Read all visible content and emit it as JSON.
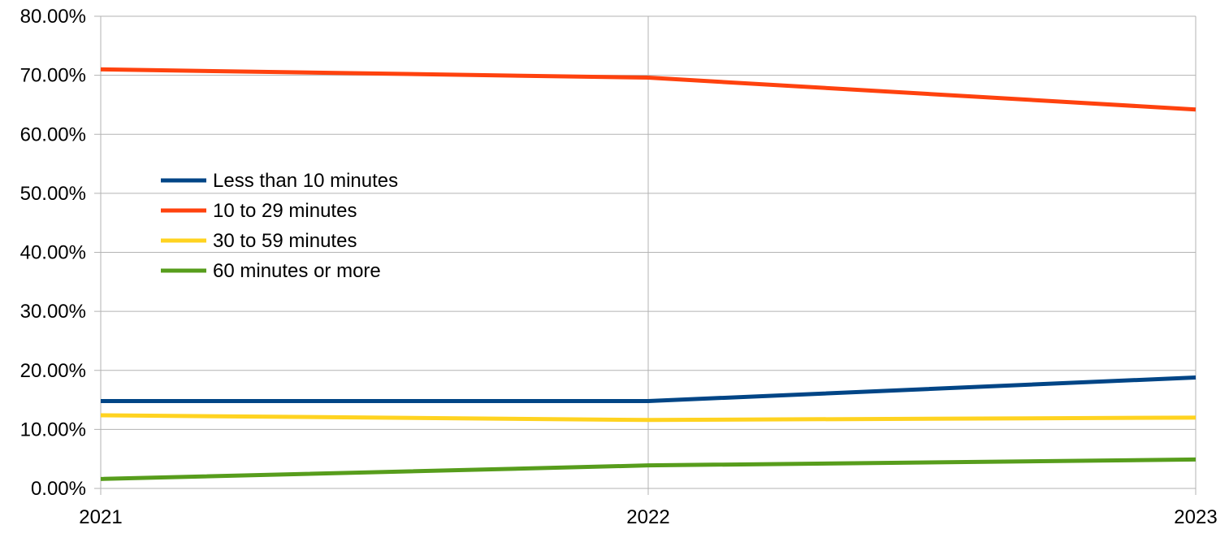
{
  "chart_data": {
    "type": "line",
    "title": "",
    "xlabel": "",
    "ylabel": "",
    "x": [
      "2021",
      "2022",
      "2023"
    ],
    "ylim": [
      0,
      80
    ],
    "y_tick_labels": [
      "0.00%",
      "10.00%",
      "20.00%",
      "30.00%",
      "40.00%",
      "50.00%",
      "60.00%",
      "70.00%",
      "80.00%"
    ],
    "grid": true,
    "legend_placement": "upper-left inside plot",
    "series": [
      {
        "name": "Less than 10 minutes",
        "color": "#004586",
        "values": [
          14.8,
          14.8,
          18.8
        ]
      },
      {
        "name": "10 to 29 minutes",
        "color": "#ff420e",
        "values": [
          71.0,
          69.6,
          64.2
        ]
      },
      {
        "name": "30 to 59 minutes",
        "color": "#ffd320",
        "values": [
          12.4,
          11.6,
          12.0
        ]
      },
      {
        "name": "60 minutes or more",
        "color": "#579d1c",
        "values": [
          1.6,
          3.9,
          4.9
        ]
      }
    ]
  }
}
